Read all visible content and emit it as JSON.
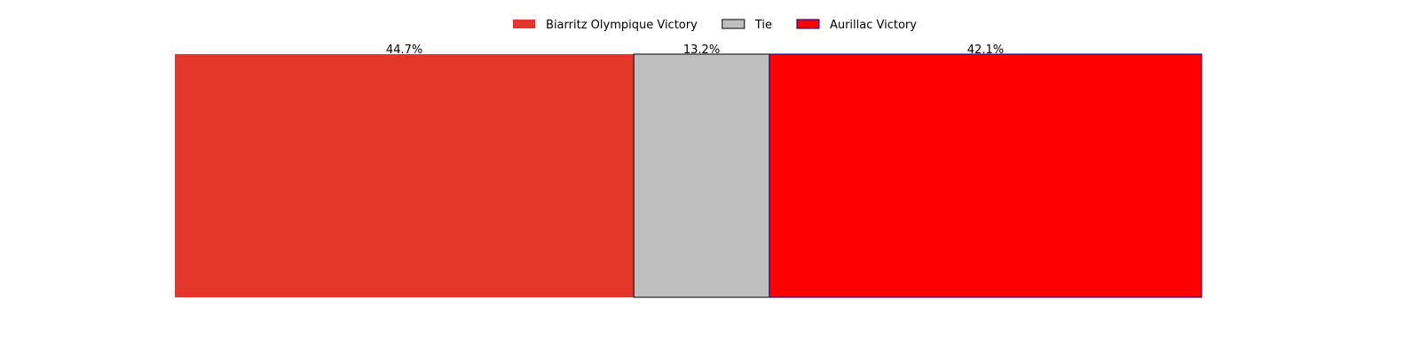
{
  "chart_data": {
    "type": "bar",
    "orientation": "horizontal-stacked",
    "title": "",
    "xlabel": "",
    "ylabel": "",
    "xlim": [
      0,
      100
    ],
    "unit": "%",
    "grid": false,
    "axes_visible": false,
    "legend_placement": "top-center",
    "segments": [
      {
        "name": "Biarritz Olympique Victory",
        "value": 44.7,
        "label": "44.7%",
        "color": "#e3372b",
        "edge": "none"
      },
      {
        "name": "Tie",
        "value": 13.2,
        "label": "13.2%",
        "color": "#bfbfbf",
        "edge": "#000000"
      },
      {
        "name": "Aurillac Victory",
        "value": 42.1,
        "label": "42.1%",
        "color": "#ff0000",
        "edge": "#00008b"
      }
    ]
  }
}
